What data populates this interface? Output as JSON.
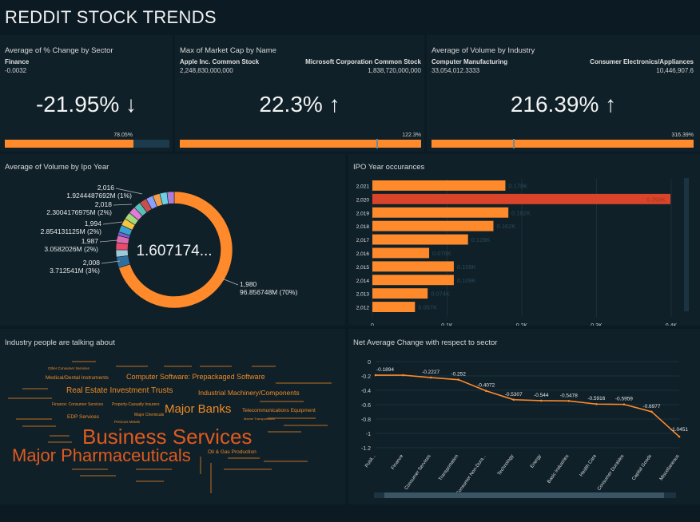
{
  "header": {
    "title": "REDDIT STOCK TRENDS"
  },
  "kpi1": {
    "title": "Average of % Change by Sector",
    "name": "Finance",
    "value": "-0.0032",
    "big": "-21.95% ↓",
    "bar_label": "78.05%",
    "fill_pct": 78.05
  },
  "kpi2": {
    "title": "Max of Market Cap by Name",
    "left_name": "Apple Inc. Common Stock",
    "left_value": "2,248,830,000,000",
    "right_name": "Microsoft Corporation Common Stock",
    "right_value": "1,838,720,000,000",
    "big": "22.3% ↑",
    "bar_label": "122.3%",
    "fill_pct": 100
  },
  "kpi3": {
    "title": "Average of Volume by Industry",
    "left_name": "Computer Manufacturing",
    "left_value": "33,054,012.3333",
    "right_name": "Consumer Electronics/Appliances",
    "right_value": "10,446,907.6",
    "big": "216.39% ↑",
    "bar_label": "316.39%",
    "fill_pct": 100
  },
  "donut": {
    "title": "Average of Volume by Ipo Year",
    "center": "1.607174...",
    "labels": [
      {
        "year": "2,016",
        "value": "1.9244487692M (1%)"
      },
      {
        "year": "2,018",
        "value": "2.3004176975M (2%)"
      },
      {
        "year": "1,994",
        "value": "2.854131125M (2%)"
      },
      {
        "year": "1,987",
        "value": "3.0582026M (2%)"
      },
      {
        "year": "2,008",
        "value": "3.712541M (3%)"
      },
      {
        "year": "1,980",
        "value": "96.856748M (70%)"
      }
    ]
  },
  "bars": {
    "title": "IPO Year occurances"
  },
  "wordcloud": {
    "title": "Industry people are talking about",
    "words": [
      {
        "text": "Business Services",
        "size": 26,
        "emph": true
      },
      {
        "text": "Major Pharmaceuticals",
        "size": 22,
        "emph": true
      },
      {
        "text": "Major Banks",
        "size": 15,
        "emph": false
      },
      {
        "text": "Real Estate Investment Trusts",
        "size": 10,
        "emph": false
      },
      {
        "text": "Computer Software: Prepackaged Software",
        "size": 9,
        "emph": false
      },
      {
        "text": "Industrial Machinery/Components",
        "size": 8.5,
        "emph": false
      },
      {
        "text": "Medical/Dental Instruments",
        "size": 6.5,
        "emph": false
      },
      {
        "text": "Telecommunications Equipment",
        "size": 6.5,
        "emph": false
      },
      {
        "text": "Oil & Gas Production",
        "size": 6.5,
        "emph": false
      },
      {
        "text": "EDP Services",
        "size": 6.5,
        "emph": false
      },
      {
        "text": "Finance: Consumer Services",
        "size": 5,
        "emph": false
      },
      {
        "text": "Property-Casualty Insurers",
        "size": 5,
        "emph": false
      },
      {
        "text": "Other Consumer Services",
        "size": 4.5,
        "emph": false
      },
      {
        "text": "Major Chemicals",
        "size": 5,
        "emph": false
      },
      {
        "text": "Precious Metals",
        "size": 4.5,
        "emph": false
      },
      {
        "text": "Marine Transportation",
        "size": 4,
        "emph": false
      }
    ]
  },
  "line": {
    "title": "Net Average Change with respect to sector"
  },
  "chart_data": [
    {
      "type": "pie",
      "title": "Average of Volume by Ipo Year",
      "slices": [
        {
          "label": "1,980",
          "value": 96.856748,
          "percent": 70,
          "color": "#ff8a2b"
        },
        {
          "label": "2,008",
          "value": 3.712541,
          "percent": 3,
          "color": "#2f6f9e"
        },
        {
          "label": "1,987",
          "value": 3.0582026,
          "percent": 2,
          "color": "#9ec9d9"
        },
        {
          "label": "1,994",
          "value": 2.854131125,
          "percent": 2,
          "color": "#e94b6a"
        },
        {
          "label": "2,018",
          "value": 2.3004176975,
          "percent": 2,
          "color": "#d96cb0"
        },
        {
          "label": "2,016",
          "value": 1.9244487692,
          "percent": 1,
          "color": "#7d5fd1"
        }
      ],
      "others_color": "#3aa0d0"
    },
    {
      "type": "bar",
      "title": "IPO Year occurances",
      "orientation": "horizontal",
      "categories": [
        "2,021",
        "2,020",
        "2,019",
        "2,018",
        "2,017",
        "2,016",
        "2,015",
        "2,014",
        "2,013",
        "2,012"
      ],
      "values": [
        0.178,
        0.399,
        0.182,
        0.162,
        0.128,
        0.076,
        0.109,
        0.109,
        0.074,
        0.057
      ],
      "labels": [
        "0.178K",
        "0.399K",
        "0.182K",
        "0.162K",
        "0.128K",
        "0.076K",
        "0.109K",
        "0.109K",
        "0.074K",
        "0.057K"
      ],
      "highlight": "2,020",
      "xlim": [
        0,
        0.4
      ],
      "xticks": [
        "0",
        "0.1K",
        "0.2K",
        "0.3K",
        "0.4K"
      ],
      "color": "#ff8a2b",
      "highlight_color": "#d9442a"
    },
    {
      "type": "line",
      "title": "Net Average Change with respect to sector",
      "categories": [
        "Public Utilities",
        "Finance",
        "Consumer Services",
        "Transportation",
        "Consumer Non-Durables",
        "Technology",
        "Energy",
        "Basic Industries",
        "Health Care",
        "Consumer Durables",
        "Capital Goods",
        "Miscellaneous"
      ],
      "category_labels": [
        "Publi...",
        "Finance",
        "Consumer Services",
        "Transportation",
        "Consumer Non-Dura...",
        "Technology",
        "Energy",
        "Basic Industries",
        "Health Care",
        "Consumer Durables",
        "Capital Goods",
        "Miscellaneous"
      ],
      "values": [
        -0.1894,
        -0.1894,
        -0.2227,
        -0.252,
        -0.4072,
        -0.5307,
        -0.544,
        -0.5478,
        -0.5916,
        -0.5959,
        -0.6977,
        -1.0451
      ],
      "labels": [
        "-0.1894",
        "",
        "-0.2227",
        "-0.252",
        "-0.4072",
        "-0.5307",
        "-0.544",
        "-0.5478",
        "-0.5916",
        "-0.5959",
        "-0.6977",
        "-1.0451"
      ],
      "ylim": [
        -1.2,
        0
      ],
      "yticks": [
        "0",
        "-0.2",
        "-0.4",
        "-0.6",
        "-0.8",
        "-1",
        "-1.2"
      ],
      "color": "#ff8a2b"
    }
  ]
}
